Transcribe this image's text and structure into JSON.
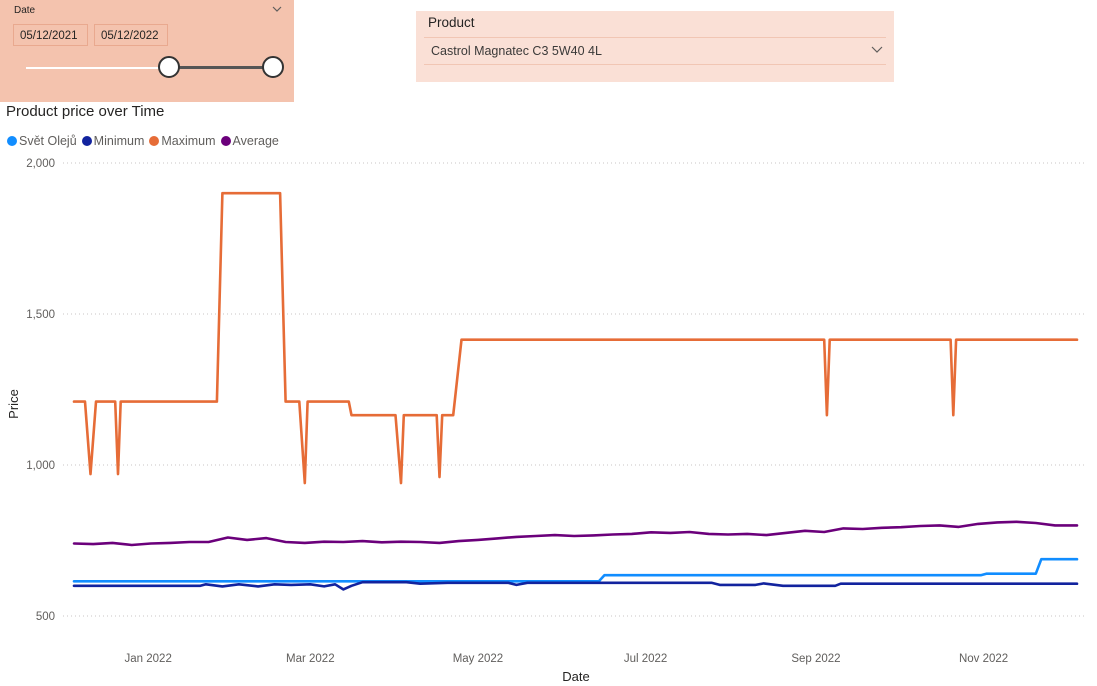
{
  "date_slicer": {
    "title": "Date",
    "from": "05/12/2021",
    "to": "05/12/2022",
    "icon": "chevron-down-icon"
  },
  "product_slicer": {
    "title": "Product",
    "selected": "Castrol Magnatec C3 5W40 4L",
    "icon": "chevron-down-icon"
  },
  "chart_data": {
    "type": "line",
    "title": "Product price over Time",
    "xlabel": "Date",
    "ylabel": "Price",
    "ylim": [
      500,
      2000
    ],
    "yticks": [
      500,
      1000,
      1500,
      2000
    ],
    "ytick_labels": [
      "500",
      "1,000",
      "1,500",
      "2,000"
    ],
    "xlim": [
      "2021-12-05",
      "2022-12-05"
    ],
    "xticks": [
      "2022-01-01",
      "2022-03-01",
      "2022-05-01",
      "2022-07-01",
      "2022-09-01",
      "2022-11-01"
    ],
    "xtick_labels": [
      "Jan 2022",
      "Mar 2022",
      "May 2022",
      "Jul 2022",
      "Sep 2022",
      "Nov 2022"
    ],
    "grid": true,
    "legend_position": "top-left",
    "series": [
      {
        "name": "Svět Olejů",
        "color": "#118dff",
        "points": [
          [
            "2021-12-05",
            615
          ],
          [
            "2022-06-14",
            615
          ],
          [
            "2022-06-16",
            635
          ],
          [
            "2022-10-31",
            635
          ],
          [
            "2022-11-02",
            640
          ],
          [
            "2022-11-20",
            640
          ],
          [
            "2022-11-22",
            688
          ],
          [
            "2022-12-05",
            688
          ]
        ]
      },
      {
        "name": "Minimum",
        "color": "#12239e",
        "points": [
          [
            "2021-12-05",
            600
          ],
          [
            "2022-01-20",
            600
          ],
          [
            "2022-01-22",
            605
          ],
          [
            "2022-01-28",
            598
          ],
          [
            "2022-02-03",
            605
          ],
          [
            "2022-02-10",
            598
          ],
          [
            "2022-02-16",
            605
          ],
          [
            "2022-02-22",
            603
          ],
          [
            "2022-03-01",
            605
          ],
          [
            "2022-03-06",
            598
          ],
          [
            "2022-03-10",
            605
          ],
          [
            "2022-03-13",
            588
          ],
          [
            "2022-03-16",
            600
          ],
          [
            "2022-03-20",
            612
          ],
          [
            "2022-04-05",
            612
          ],
          [
            "2022-04-10",
            607
          ],
          [
            "2022-04-20",
            610
          ],
          [
            "2022-05-12",
            610
          ],
          [
            "2022-05-15",
            603
          ],
          [
            "2022-05-19",
            610
          ],
          [
            "2022-07-25",
            610
          ],
          [
            "2022-07-28",
            603
          ],
          [
            "2022-08-10",
            603
          ],
          [
            "2022-08-13",
            608
          ],
          [
            "2022-08-20",
            600
          ],
          [
            "2022-09-08",
            600
          ],
          [
            "2022-09-10",
            607
          ],
          [
            "2022-12-05",
            607
          ]
        ]
      },
      {
        "name": "Maximum",
        "color": "#e66c37",
        "points": [
          [
            "2021-12-05",
            1210
          ],
          [
            "2021-12-09",
            1210
          ],
          [
            "2021-12-11",
            970
          ],
          [
            "2021-12-13",
            1210
          ],
          [
            "2021-12-20",
            1210
          ],
          [
            "2021-12-21",
            970
          ],
          [
            "2021-12-22",
            1210
          ],
          [
            "2022-01-26",
            1210
          ],
          [
            "2022-01-28",
            1900
          ],
          [
            "2022-02-18",
            1900
          ],
          [
            "2022-02-20",
            1210
          ],
          [
            "2022-02-25",
            1210
          ],
          [
            "2022-02-27",
            940
          ],
          [
            "2022-02-28",
            1210
          ],
          [
            "2022-03-15",
            1210
          ],
          [
            "2022-03-16",
            1165
          ],
          [
            "2022-04-01",
            1165
          ],
          [
            "2022-04-03",
            940
          ],
          [
            "2022-04-04",
            1165
          ],
          [
            "2022-04-16",
            1165
          ],
          [
            "2022-04-17",
            960
          ],
          [
            "2022-04-18",
            1165
          ],
          [
            "2022-04-22",
            1165
          ],
          [
            "2022-04-25",
            1415
          ],
          [
            "2022-09-04",
            1415
          ],
          [
            "2022-09-05",
            1165
          ],
          [
            "2022-09-06",
            1415
          ],
          [
            "2022-10-20",
            1415
          ],
          [
            "2022-10-21",
            1165
          ],
          [
            "2022-10-22",
            1415
          ],
          [
            "2022-12-05",
            1415
          ]
        ]
      },
      {
        "name": "Average",
        "color": "#6b007b",
        "points": [
          [
            "2021-12-05",
            740
          ],
          [
            "2021-12-12",
            738
          ],
          [
            "2021-12-19",
            742
          ],
          [
            "2021-12-26",
            735
          ],
          [
            "2022-01-02",
            740
          ],
          [
            "2022-01-09",
            742
          ],
          [
            "2022-01-16",
            745
          ],
          [
            "2022-01-23",
            745
          ],
          [
            "2022-01-30",
            760
          ],
          [
            "2022-02-06",
            752
          ],
          [
            "2022-02-13",
            758
          ],
          [
            "2022-02-20",
            745
          ],
          [
            "2022-02-27",
            742
          ],
          [
            "2022-03-06",
            746
          ],
          [
            "2022-03-13",
            745
          ],
          [
            "2022-03-20",
            748
          ],
          [
            "2022-03-27",
            744
          ],
          [
            "2022-04-03",
            746
          ],
          [
            "2022-04-10",
            745
          ],
          [
            "2022-04-17",
            742
          ],
          [
            "2022-04-24",
            748
          ],
          [
            "2022-05-01",
            752
          ],
          [
            "2022-05-08",
            757
          ],
          [
            "2022-05-15",
            762
          ],
          [
            "2022-05-22",
            765
          ],
          [
            "2022-05-29",
            768
          ],
          [
            "2022-06-05",
            765
          ],
          [
            "2022-06-12",
            767
          ],
          [
            "2022-06-19",
            770
          ],
          [
            "2022-06-26",
            772
          ],
          [
            "2022-07-03",
            777
          ],
          [
            "2022-07-10",
            775
          ],
          [
            "2022-07-17",
            778
          ],
          [
            "2022-07-24",
            772
          ],
          [
            "2022-07-31",
            770
          ],
          [
            "2022-08-07",
            772
          ],
          [
            "2022-08-14",
            768
          ],
          [
            "2022-08-21",
            775
          ],
          [
            "2022-08-28",
            782
          ],
          [
            "2022-09-04",
            778
          ],
          [
            "2022-09-11",
            790
          ],
          [
            "2022-09-18",
            788
          ],
          [
            "2022-09-25",
            792
          ],
          [
            "2022-10-02",
            794
          ],
          [
            "2022-10-09",
            798
          ],
          [
            "2022-10-16",
            800
          ],
          [
            "2022-10-23",
            795
          ],
          [
            "2022-10-30",
            805
          ],
          [
            "2022-11-06",
            810
          ],
          [
            "2022-11-13",
            812
          ],
          [
            "2022-11-20",
            808
          ],
          [
            "2022-11-27",
            800
          ],
          [
            "2022-12-05",
            800
          ]
        ]
      }
    ]
  }
}
